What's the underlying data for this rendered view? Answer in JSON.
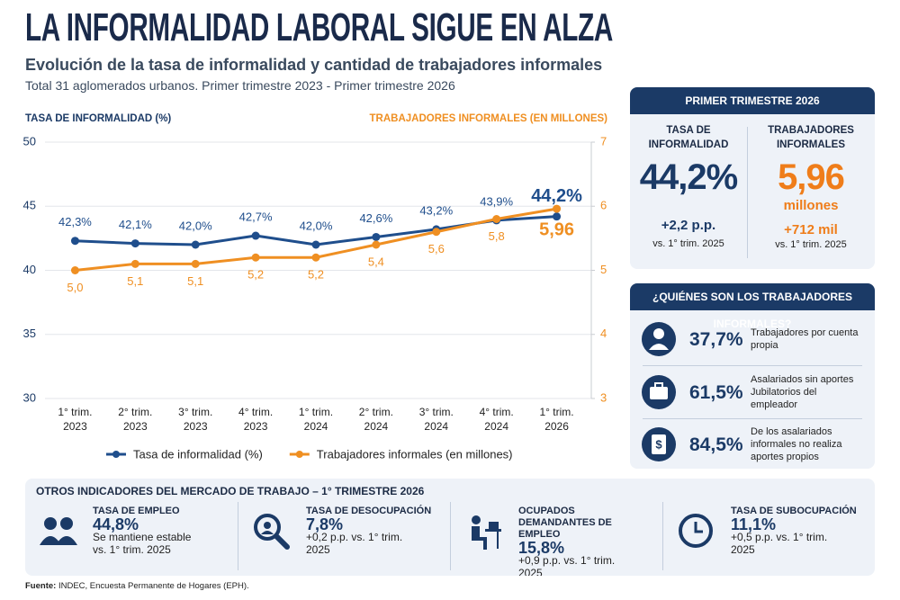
{
  "header": {
    "title": "LA INFORMALIDAD LABORAL SIGUE EN ALZA",
    "subtitle": "Evolución de la tasa de informalidad y cantidad de trabajadores informales",
    "note": "Total 31 aglomerados urbanos. Primer trimestre 2023 - Primer trimestre 2026"
  },
  "chart_data": {
    "type": "line",
    "y_label": "TASA DE INFORMALIDAD (%)",
    "y2_label": "TRABAJADORES INFORMALES (EN MILLONES)",
    "categories": [
      "1° trim. 2023",
      "2° trim. 2023",
      "3° trim. 2023",
      "4° trim. 2023",
      "1° trim. 2024",
      "2° trim. 2024",
      "3° trim. 2024",
      "4° trim. 2024",
      "1° trim. 2026"
    ],
    "series": [
      {
        "name": "Tasa de informalidad (%)",
        "color": "#1f4e8c",
        "axis": "y",
        "values": [
          42.3,
          42.1,
          42.0,
          42.7,
          42.0,
          42.6,
          43.2,
          43.9,
          44.2
        ],
        "value_labels": [
          "42,3%",
          "42,1%",
          "42,0%",
          "42,7%",
          "42,0%",
          "42,6%",
          "43,2%",
          "43,9%",
          "44,2%"
        ]
      },
      {
        "name": "Trabajadores informales (en millones)",
        "color": "#ef8f22",
        "axis": "y2",
        "values": [
          5.0,
          5.1,
          5.1,
          5.2,
          5.2,
          5.4,
          5.6,
          5.8,
          5.96
        ],
        "value_labels": [
          "5,0",
          "5,1",
          "5,1",
          "5,2",
          "5,2",
          "5,4",
          "5,6",
          "5,8",
          "5,96"
        ]
      }
    ],
    "ylim": [
      30,
      50
    ],
    "yticks": [
      30,
      35,
      40,
      45,
      50
    ],
    "y2lim": [
      3,
      7
    ],
    "y2ticks": [
      3,
      4,
      5,
      6,
      7
    ],
    "grid": true
  },
  "summary": {
    "title": "PRIMER TRIMESTRE 2026",
    "columns": [
      {
        "label": "TASA DE INFORMALIDAD",
        "value": "44,2%",
        "change": "+2,2 p.p.",
        "comparison": "vs. 1° trim. 2025"
      },
      {
        "label": "TRABAJADORES INFORMALES",
        "value": "5,96",
        "unit": "millones",
        "change": "+712 mil",
        "comparison": "vs. 1° trim. 2025"
      }
    ]
  },
  "who": {
    "title": "¿QUIÉNES SON LOS TRABAJADORES INFORMALES?",
    "items": [
      {
        "value": "37,7%",
        "text": "Trabajadores por cuenta propia"
      },
      {
        "value": "61,5%",
        "text": "Asalariados sin aportes Jubilatorios del empleador"
      },
      {
        "value": "84,5%",
        "text": "De los asalariados informales no realiza aportes propios"
      }
    ]
  },
  "indicators": {
    "title": "OTROS INDICADORES DEL MERCADO DE TRABAJO – 1° TRIMESTRE 2026",
    "items": [
      {
        "label": "TASA DE EMPLEO",
        "value": "44,8%",
        "note": "Se mantiene estable vs. 1° trim. 2025"
      },
      {
        "label": "TASA DE DESOCUPACIÓN",
        "value": "7,8%",
        "note": "+0,2 p.p. vs. 1° trim. 2025"
      },
      {
        "label": "OCUPADOS DEMANDANTES DE EMPLEO",
        "value": "15,8%",
        "note": "+0,9 p.p. vs. 1° trim. 2025"
      },
      {
        "label": "TASA DE SUBOCUPACIÓN",
        "value": "11,1%",
        "note": "+0,5 p.p. vs. 1° trim. 2025"
      }
    ]
  },
  "footer": {
    "source_label": "Fuente:",
    "source": "INDEC, Encuesta Permanente de Hogares (EPH)."
  }
}
